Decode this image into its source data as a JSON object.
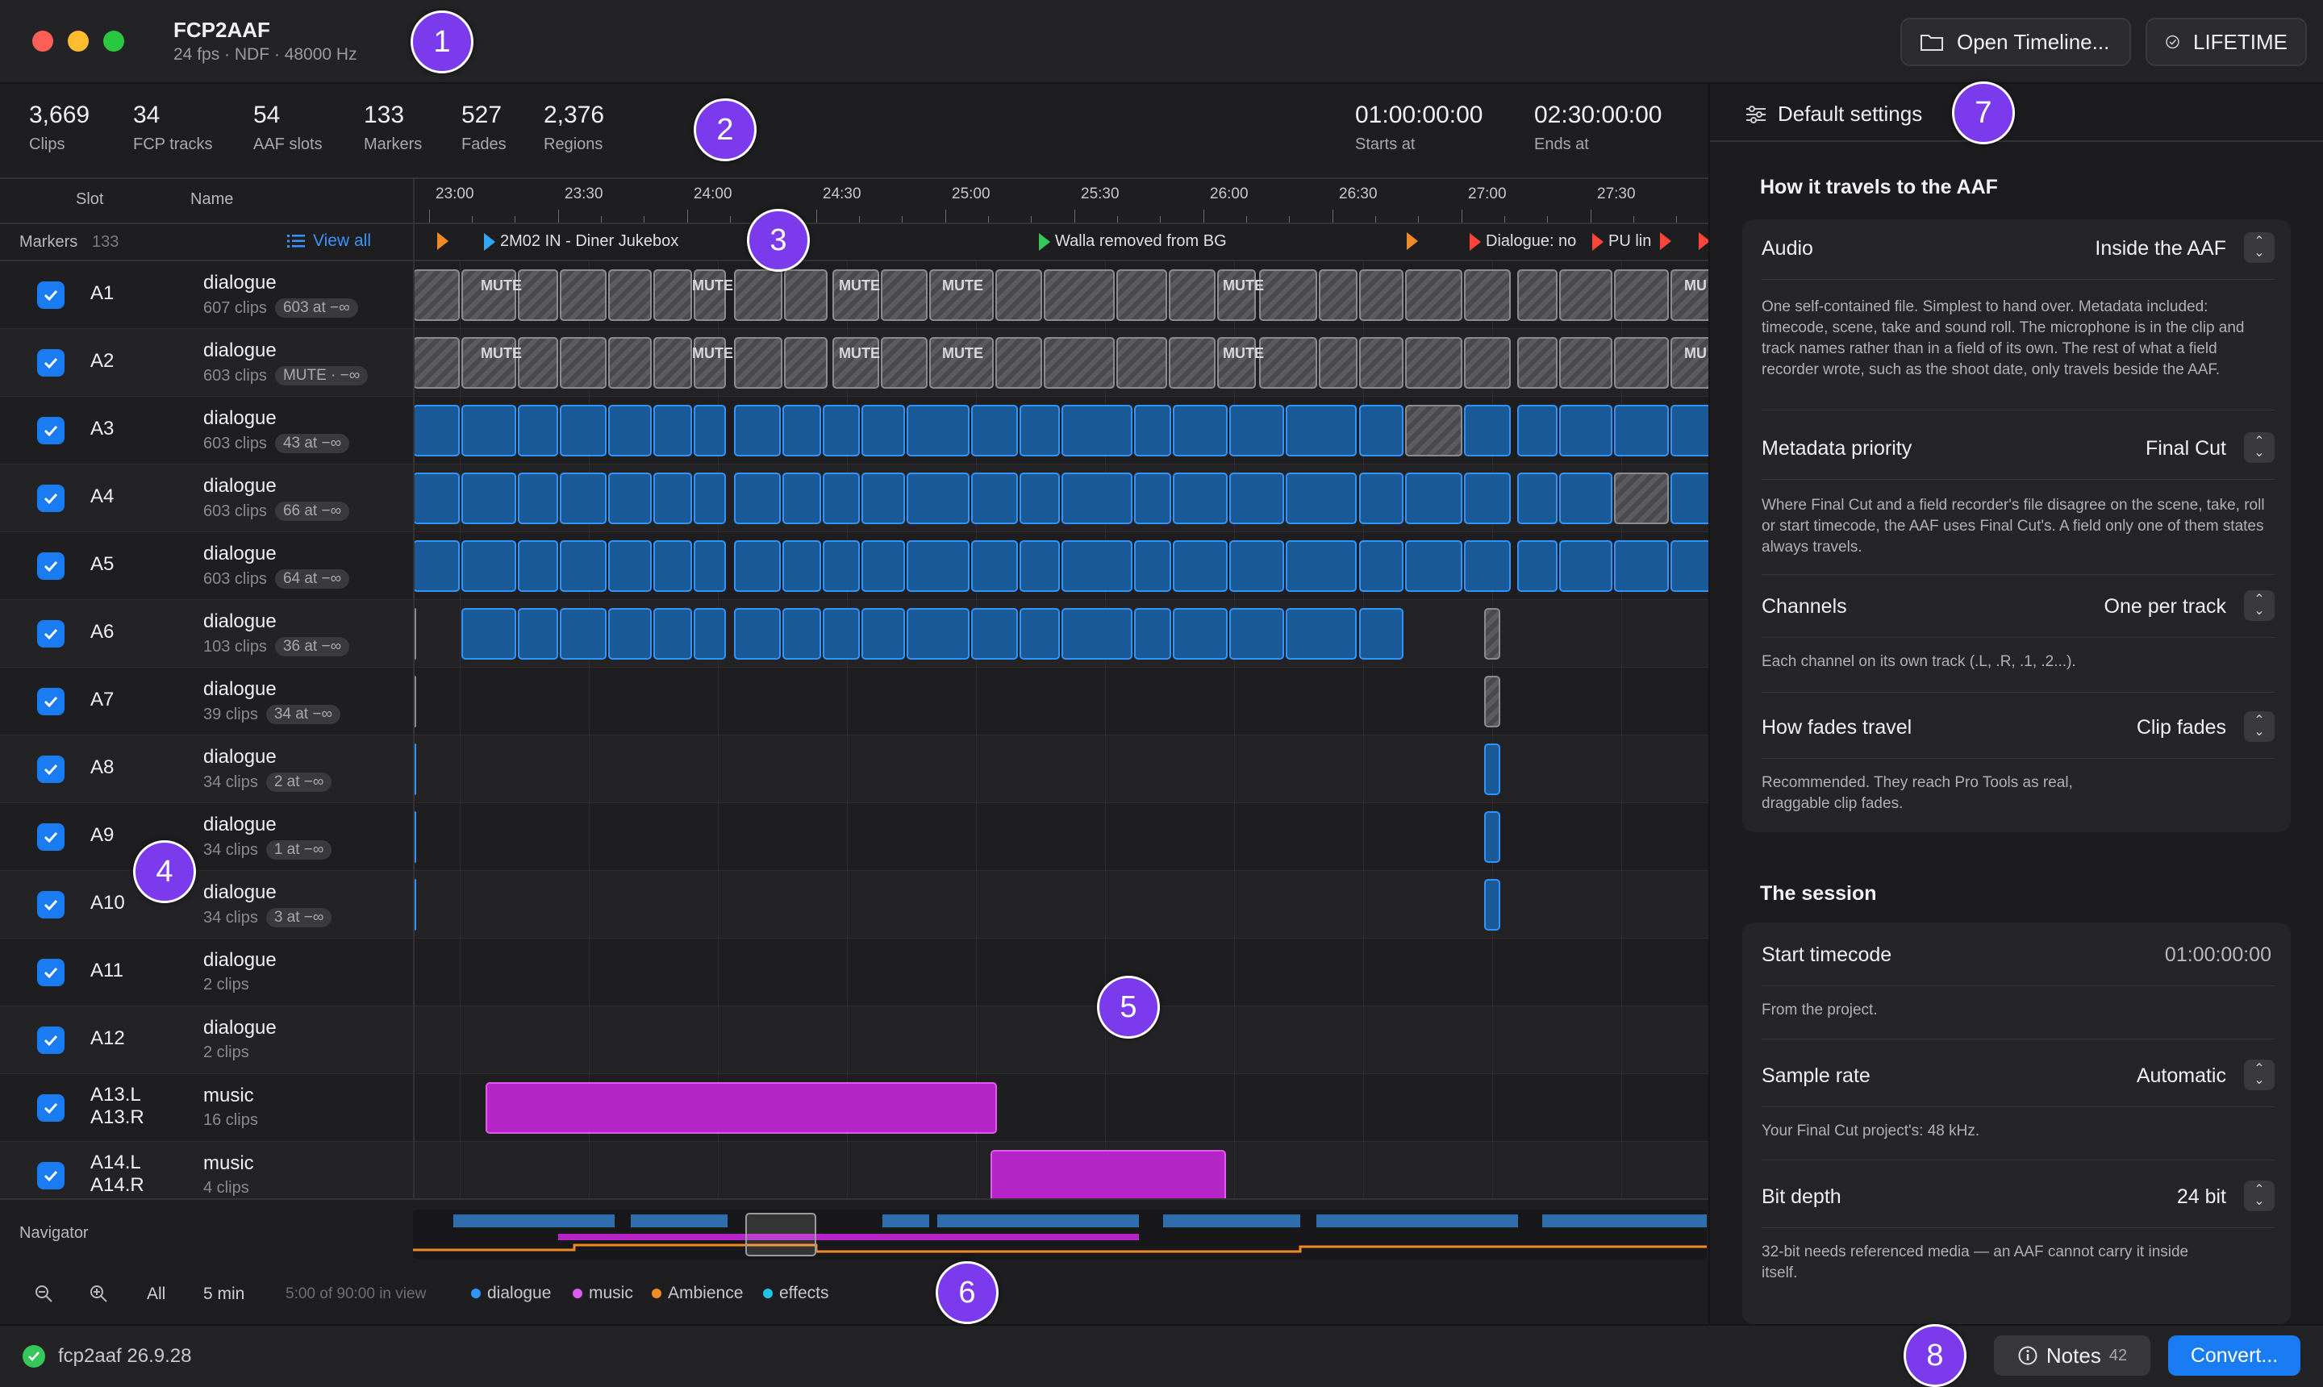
{
  "app": {
    "title": "FCP2AAF",
    "subtitle": "24 fps · NDF · 48000 Hz"
  },
  "toolbar": {
    "open_label": "Open Timeline...",
    "lifetime_label": "LIFETIME"
  },
  "callouts": [
    "1",
    "2",
    "3",
    "4",
    "5",
    "6",
    "7",
    "8"
  ],
  "stats": [
    {
      "value": "3,669",
      "label": "Clips"
    },
    {
      "value": "34",
      "label": "FCP tracks"
    },
    {
      "value": "54",
      "label": "AAF slots"
    },
    {
      "value": "133",
      "label": "Markers"
    },
    {
      "value": "527",
      "label": "Fades"
    },
    {
      "value": "2,376",
      "label": "Regions"
    }
  ],
  "timecodes": {
    "start": "01:00:00:00",
    "start_label": "Starts at",
    "end": "02:30:00:00",
    "end_label": "Ends at"
  },
  "columns": {
    "slot": "Slot",
    "name": "Name"
  },
  "ruler": [
    "23:00",
    "23:30",
    "24:00",
    "24:30",
    "25:00",
    "25:30",
    "26:00",
    "26:30",
    "27:00",
    "27:30"
  ],
  "markers": {
    "label": "Markers",
    "count": "133",
    "view_all": "View all",
    "items": [
      "2M02 IN - Diner Jukebox",
      "Walla removed from BG",
      "Dialogue: no",
      "PU lin"
    ]
  },
  "mute_label": "MUTE",
  "tracks": [
    {
      "slot": "A1",
      "slot2": "",
      "name": "dialogue",
      "clips": "607 clips",
      "badge": "603 at −∞"
    },
    {
      "slot": "A2",
      "slot2": "",
      "name": "dialogue",
      "clips": "603 clips",
      "badge": "MUTE · −∞"
    },
    {
      "slot": "A3",
      "slot2": "",
      "name": "dialogue",
      "clips": "603 clips",
      "badge": "43 at −∞"
    },
    {
      "slot": "A4",
      "slot2": "",
      "name": "dialogue",
      "clips": "603 clips",
      "badge": "66 at −∞"
    },
    {
      "slot": "A5",
      "slot2": "",
      "name": "dialogue",
      "clips": "603 clips",
      "badge": "64 at −∞"
    },
    {
      "slot": "A6",
      "slot2": "",
      "name": "dialogue",
      "clips": "103 clips",
      "badge": "36 at −∞"
    },
    {
      "slot": "A7",
      "slot2": "",
      "name": "dialogue",
      "clips": "39 clips",
      "badge": "34 at −∞"
    },
    {
      "slot": "A8",
      "slot2": "",
      "name": "dialogue",
      "clips": "34 clips",
      "badge": "2 at −∞"
    },
    {
      "slot": "A9",
      "slot2": "",
      "name": "dialogue",
      "clips": "34 clips",
      "badge": "1 at −∞"
    },
    {
      "slot": "A10",
      "slot2": "",
      "name": "dialogue",
      "clips": "34 clips",
      "badge": "3 at −∞"
    },
    {
      "slot": "A11",
      "slot2": "",
      "name": "dialogue",
      "clips": "2 clips",
      "badge": ""
    },
    {
      "slot": "A12",
      "slot2": "",
      "name": "dialogue",
      "clips": "2 clips",
      "badge": ""
    },
    {
      "slot": "A13.L",
      "slot2": "A13.R",
      "name": "music",
      "clips": "16 clips",
      "badge": ""
    },
    {
      "slot": "A14.L",
      "slot2": "A14.R",
      "name": "music",
      "clips": "4 clips",
      "badge": ""
    }
  ],
  "navigator": {
    "label": "Navigator",
    "all": "All",
    "five_min": "5 min",
    "in_view": "5:00 of 90:00 in view",
    "legend": [
      {
        "name": "dialogue",
        "color": "#2f95ff"
      },
      {
        "name": "music",
        "color": "#e05bf0"
      },
      {
        "name": "Ambience",
        "color": "#f08a24"
      },
      {
        "name": "effects",
        "color": "#22c5e6"
      }
    ]
  },
  "panel": {
    "title": "Default settings",
    "section1": "How it travels to the AAF",
    "audio": {
      "label": "Audio",
      "value": "Inside the AAF",
      "desc": "One self-contained file. Simplest to hand over. Metadata included: timecode, scene, take and sound roll. The microphone is in the clip and track names rather than in a field of its own. The rest of what a field recorder wrote, such as the shoot date, only travels beside the AAF."
    },
    "metadata": {
      "label": "Metadata priority",
      "value": "Final Cut",
      "desc": "Where Final Cut and a field recorder's file disagree on the scene, take, roll or start timecode, the AAF uses Final Cut's. A field only one of them states always travels."
    },
    "channels": {
      "label": "Channels",
      "value": "One per track",
      "desc": "Each channel on its own track (.L, .R, .1, .2...)."
    },
    "fades": {
      "label": "How fades travel",
      "value": "Clip fades",
      "desc": "Recommended. They reach Pro Tools as real, draggable clip fades."
    },
    "section2": "The session",
    "start_tc": {
      "label": "Start timecode",
      "value": "01:00:00:00",
      "desc": "From the project."
    },
    "sample_rate": {
      "label": "Sample rate",
      "value": "Automatic",
      "desc": "Your Final Cut project's: 48 kHz."
    },
    "bit_depth": {
      "label": "Bit depth",
      "value": "24 bit",
      "desc": "32-bit needs referenced media — an AAF cannot carry it inside itself."
    }
  },
  "status": {
    "version": "fcp2aaf 26.9.28",
    "notes_label": "Notes",
    "notes_count": "42",
    "convert_label": "Convert..."
  },
  "colors": {
    "accent": "#1a7cf3",
    "callout": "#7c3aed",
    "dialogue": "#2f95ff",
    "music": "#e05bf0"
  }
}
